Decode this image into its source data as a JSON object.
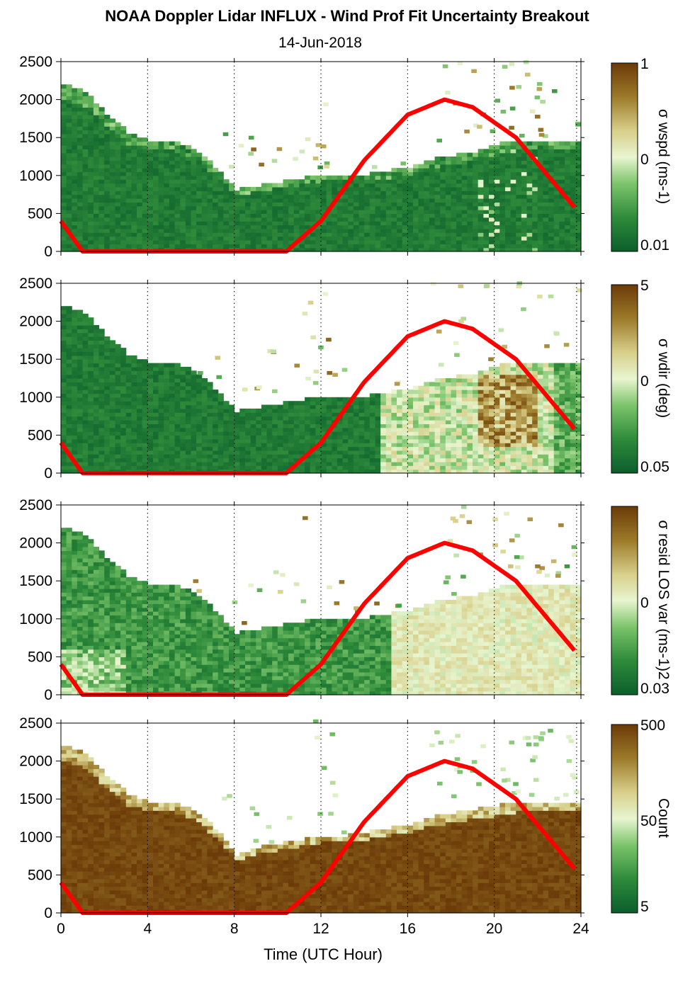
{
  "figure": {
    "title": "NOAA Doppler Lidar INFLUX - Wind Prof Fit Uncertainty Breakout",
    "subtitle": "14-Jun-2018",
    "xlabel": "Time (UTC Hour)"
  },
  "colors": {
    "curve": "#ff0000",
    "colormap": [
      "#0b5e2c",
      "#2e8b3a",
      "#7cc46b",
      "#e8f5d0",
      "#d8cf8a",
      "#9c7a2a",
      "#6b3a08"
    ]
  },
  "chart_data": [
    {
      "type": "heatmap",
      "panel": "wspd",
      "xlim": [
        0,
        24
      ],
      "ylim": [
        0,
        2500
      ],
      "xticks": [
        0,
        4,
        8,
        12,
        16,
        20,
        24
      ],
      "yticks": [
        0,
        500,
        1000,
        1500,
        2000,
        2500
      ],
      "colorbar": {
        "label": "σ wspd (ms-1)",
        "ticks": [
          "1",
          "0",
          "0.01"
        ],
        "scale": "log"
      },
      "data_top_height": [
        [
          0,
          2200
        ],
        [
          1,
          2100
        ],
        [
          2,
          1800
        ],
        [
          3,
          1550
        ],
        [
          4,
          1450
        ],
        [
          5,
          1450
        ],
        [
          6,
          1350
        ],
        [
          7,
          1100
        ],
        [
          8,
          800
        ],
        [
          9,
          850
        ],
        [
          10,
          900
        ],
        [
          11,
          950
        ],
        [
          12,
          1000
        ],
        [
          13,
          1000
        ],
        [
          14,
          1000
        ],
        [
          15,
          1050
        ],
        [
          16,
          1100
        ],
        [
          17,
          1200
        ],
        [
          18,
          1250
        ],
        [
          19,
          1300
        ],
        [
          20,
          1400
        ],
        [
          21,
          1450
        ],
        [
          22,
          1450
        ],
        [
          23,
          1450
        ],
        [
          23.8,
          1450
        ]
      ],
      "sun_curve": [
        [
          0,
          400
        ],
        [
          1,
          0
        ],
        [
          10.4,
          0
        ],
        [
          12,
          400
        ],
        [
          14,
          1200
        ],
        [
          16,
          1800
        ],
        [
          17.7,
          2000
        ],
        [
          19,
          1900
        ],
        [
          21,
          1500
        ],
        [
          23.8,
          550
        ]
      ]
    },
    {
      "type": "heatmap",
      "panel": "wdir",
      "xlim": [
        0,
        24
      ],
      "ylim": [
        0,
        2500
      ],
      "xticks": [
        0,
        4,
        8,
        12,
        16,
        20,
        24
      ],
      "yticks": [
        0,
        500,
        1000,
        1500,
        2000,
        2500
      ],
      "colorbar": {
        "label": "σ wdir (deg)",
        "ticks": [
          "5",
          "0",
          "0.05"
        ],
        "scale": "log"
      },
      "data_top_height": [
        [
          0,
          2200
        ],
        [
          1,
          2100
        ],
        [
          2,
          1800
        ],
        [
          3,
          1550
        ],
        [
          4,
          1450
        ],
        [
          5,
          1450
        ],
        [
          6,
          1350
        ],
        [
          7,
          1100
        ],
        [
          8,
          800
        ],
        [
          9,
          850
        ],
        [
          10,
          900
        ],
        [
          11,
          950
        ],
        [
          12,
          1000
        ],
        [
          13,
          1000
        ],
        [
          14,
          1000
        ],
        [
          15,
          1050
        ],
        [
          16,
          1100
        ],
        [
          17,
          1200
        ],
        [
          18,
          1250
        ],
        [
          19,
          1300
        ],
        [
          20,
          1400
        ],
        [
          21,
          1450
        ],
        [
          22,
          1450
        ],
        [
          23,
          1450
        ],
        [
          23.8,
          1450
        ]
      ],
      "sun_curve": [
        [
          0,
          400
        ],
        [
          1,
          0
        ],
        [
          10.4,
          0
        ],
        [
          12,
          400
        ],
        [
          14,
          1200
        ],
        [
          16,
          1800
        ],
        [
          17.7,
          2000
        ],
        [
          19,
          1900
        ],
        [
          21,
          1500
        ],
        [
          23.8,
          550
        ]
      ]
    },
    {
      "type": "heatmap",
      "panel": "resid",
      "xlim": [
        0,
        24
      ],
      "ylim": [
        0,
        2500
      ],
      "xticks": [
        0,
        4,
        8,
        12,
        16,
        20,
        24
      ],
      "yticks": [
        0,
        500,
        1000,
        1500,
        2000,
        2500
      ],
      "colorbar": {
        "label": "σ resid LOS var (ms-1)2",
        "ticks": [
          "",
          "0",
          "0.03"
        ],
        "scale": "log"
      },
      "data_top_height": [
        [
          0,
          2200
        ],
        [
          1,
          2100
        ],
        [
          2,
          1800
        ],
        [
          3,
          1550
        ],
        [
          4,
          1450
        ],
        [
          5,
          1450
        ],
        [
          6,
          1350
        ],
        [
          7,
          1100
        ],
        [
          8,
          800
        ],
        [
          9,
          850
        ],
        [
          10,
          900
        ],
        [
          11,
          950
        ],
        [
          12,
          1000
        ],
        [
          13,
          1000
        ],
        [
          14,
          1000
        ],
        [
          15,
          1050
        ],
        [
          16,
          1100
        ],
        [
          17,
          1200
        ],
        [
          18,
          1250
        ],
        [
          19,
          1300
        ],
        [
          20,
          1400
        ],
        [
          21,
          1450
        ],
        [
          22,
          1450
        ],
        [
          23,
          1450
        ],
        [
          23.8,
          1450
        ]
      ],
      "sun_curve": [
        [
          0,
          400
        ],
        [
          1,
          0
        ],
        [
          10.4,
          0
        ],
        [
          12,
          400
        ],
        [
          14,
          1200
        ],
        [
          16,
          1800
        ],
        [
          17.7,
          2000
        ],
        [
          19,
          1900
        ],
        [
          21,
          1500
        ],
        [
          23.8,
          550
        ]
      ]
    },
    {
      "type": "heatmap",
      "panel": "count",
      "xlim": [
        0,
        24
      ],
      "ylim": [
        0,
        2500
      ],
      "xticks": [
        0,
        4,
        8,
        12,
        16,
        20,
        24
      ],
      "yticks": [
        0,
        500,
        1000,
        1500,
        2000,
        2500
      ],
      "colorbar": {
        "label": "Count",
        "ticks": [
          "500",
          "50",
          "5"
        ],
        "scale": "log"
      },
      "data_top_height": [
        [
          0,
          2200
        ],
        [
          1,
          2100
        ],
        [
          2,
          1800
        ],
        [
          3,
          1550
        ],
        [
          4,
          1450
        ],
        [
          5,
          1450
        ],
        [
          6,
          1350
        ],
        [
          7,
          1100
        ],
        [
          8,
          750
        ],
        [
          9,
          850
        ],
        [
          10,
          900
        ],
        [
          11,
          950
        ],
        [
          12,
          1000
        ],
        [
          13,
          1000
        ],
        [
          14,
          1050
        ],
        [
          15,
          1100
        ],
        [
          16,
          1150
        ],
        [
          17,
          1250
        ],
        [
          18,
          1300
        ],
        [
          19,
          1350
        ],
        [
          20,
          1400
        ],
        [
          21,
          1450
        ],
        [
          22,
          1450
        ],
        [
          23,
          1450
        ],
        [
          23.8,
          1450
        ]
      ],
      "sun_curve": [
        [
          0,
          400
        ],
        [
          1,
          0
        ],
        [
          10.4,
          0
        ],
        [
          12,
          400
        ],
        [
          14,
          1200
        ],
        [
          16,
          1800
        ],
        [
          17.7,
          2000
        ],
        [
          19,
          1900
        ],
        [
          21,
          1500
        ],
        [
          23.8,
          550
        ]
      ]
    }
  ]
}
